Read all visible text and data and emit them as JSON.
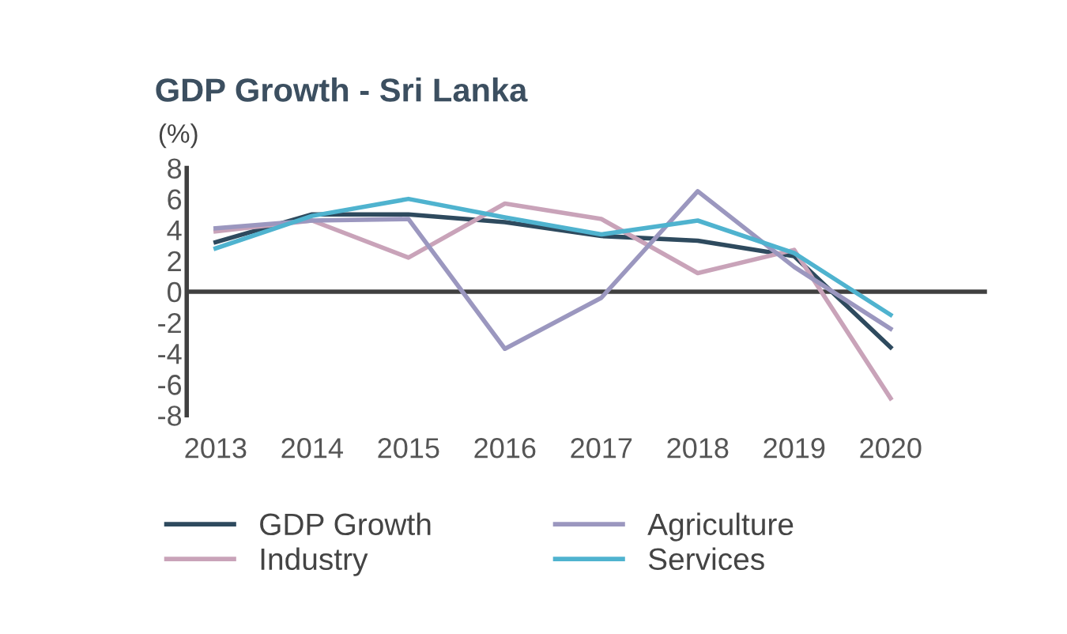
{
  "chart_data": {
    "type": "line",
    "title": "GDP Growth - Sri Lanka",
    "ylabel": "(%)",
    "categories": [
      "2013",
      "2014",
      "2015",
      "2016",
      "2017",
      "2018",
      "2019",
      "2020"
    ],
    "series": [
      {
        "name": "GDP Growth",
        "color": "#2e4a5e",
        "values": [
          3.2,
          5.0,
          5.0,
          4.5,
          3.6,
          3.3,
          2.3,
          -3.6
        ]
      },
      {
        "name": "Industry",
        "color": "#c9a3b9",
        "values": [
          3.9,
          4.6,
          2.2,
          5.7,
          4.7,
          1.2,
          2.7,
          -6.9
        ]
      },
      {
        "name": "Agriculture",
        "color": "#9b97bf",
        "values": [
          4.1,
          4.6,
          4.7,
          -3.7,
          -0.4,
          6.5,
          1.6,
          -2.4
        ]
      },
      {
        "name": "Services",
        "color": "#4fb3cf",
        "values": [
          2.8,
          4.9,
          6.0,
          4.8,
          3.7,
          4.6,
          2.5,
          -1.5
        ]
      }
    ],
    "ylim": [
      -8,
      8
    ],
    "yticks": [
      -8,
      -6,
      -4,
      -2,
      0,
      2,
      4,
      6,
      8
    ],
    "ref_lines": [
      {
        "axis": "y",
        "value": 0,
        "color": "#404040"
      }
    ],
    "grid": false,
    "legend": "bottom",
    "marker": "none",
    "line_style": "solid"
  }
}
